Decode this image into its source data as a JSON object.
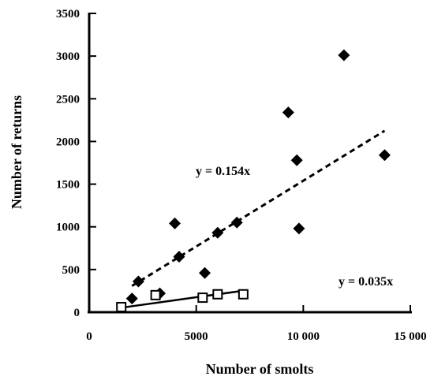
{
  "chart_data": {
    "type": "scatter",
    "xlabel": "Number of smolts",
    "ylabel": "Number of returns",
    "xlim": [
      0,
      15000
    ],
    "ylim": [
      0,
      3500
    ],
    "x_ticks": [
      0,
      5000,
      10000,
      15000
    ],
    "x_tick_labels": [
      "0",
      "5000",
      "10 000",
      "15 000"
    ],
    "y_ticks": [
      0,
      500,
      1000,
      1500,
      2000,
      2500,
      3000,
      3500
    ],
    "y_tick_labels": [
      "0",
      "500",
      "1000",
      "1500",
      "2000",
      "2500",
      "3000",
      "3500"
    ],
    "grid": false,
    "legend": "none",
    "series": [
      {
        "marker": "filled-diamond",
        "color": "#000000",
        "points": [
          {
            "x": 2000,
            "y": 160
          },
          {
            "x": 2300,
            "y": 360
          },
          {
            "x": 3300,
            "y": 220
          },
          {
            "x": 4000,
            "y": 1040
          },
          {
            "x": 4200,
            "y": 650
          },
          {
            "x": 5400,
            "y": 460
          },
          {
            "x": 6000,
            "y": 930
          },
          {
            "x": 6900,
            "y": 1050
          },
          {
            "x": 9300,
            "y": 2340
          },
          {
            "x": 9700,
            "y": 1780
          },
          {
            "x": 9800,
            "y": 980
          },
          {
            "x": 11900,
            "y": 3010
          },
          {
            "x": 13800,
            "y": 1840
          }
        ],
        "trendline": {
          "style": "dashed",
          "slope": 0.154,
          "x_range": [
            2000,
            13800
          ],
          "equation": "y = 0.154x"
        }
      },
      {
        "marker": "open-square",
        "color": "#000000",
        "points": [
          {
            "x": 1500,
            "y": 60
          },
          {
            "x": 3100,
            "y": 200
          },
          {
            "x": 5300,
            "y": 170
          },
          {
            "x": 6000,
            "y": 210
          },
          {
            "x": 7200,
            "y": 210
          }
        ],
        "trendline": {
          "style": "solid",
          "slope": 0.035,
          "x_range": [
            1500,
            7200
          ],
          "equation": "y = 0.035x"
        }
      }
    ]
  }
}
